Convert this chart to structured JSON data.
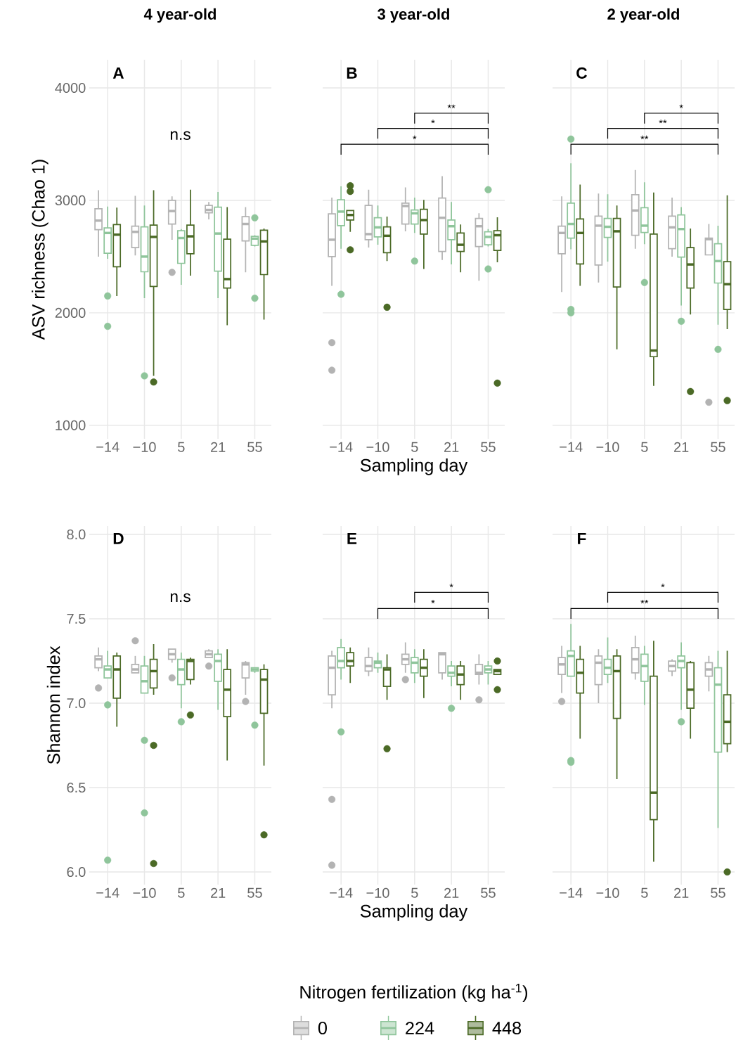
{
  "chart_data": [
    {
      "type": "box",
      "title": "4 year-old",
      "subtitle": "A",
      "ylabel": "ASV richness (Chao 1)",
      "categories": [
        "−14",
        "−10",
        "5",
        "21",
        "55"
      ],
      "ylim": [
        880,
        4250
      ],
      "yticks": [
        1000,
        2000,
        3000,
        4000
      ],
      "grid": true,
      "annotations": [
        "n.s"
      ],
      "series": [
        {
          "color": "#b3b3b3",
          "boxes": [
            {
              "low": 2500,
              "q1": 2740,
              "median": 2820,
              "q3": 2925,
              "high": 3090
            },
            {
              "low": 2510,
              "q1": 2580,
              "median": 2720,
              "q3": 2770,
              "high": 3040
            },
            {
              "low": 2650,
              "q1": 2790,
              "median": 2905,
              "q3": 3000,
              "high": 3035,
              "outliers": [
                2360
              ]
            },
            {
              "low": 2830,
              "q1": 2890,
              "median": 2915,
              "q3": 2955,
              "high": 2985
            },
            {
              "low": 2360,
              "q1": 2640,
              "median": 2790,
              "q3": 2855,
              "high": 2940
            }
          ]
        },
        {
          "color": "#8fc59b",
          "boxes": [
            {
              "low": 2480,
              "q1": 2530,
              "median": 2710,
              "q3": 2755,
              "high": 2945,
              "outliers": [
                2150,
                1880
              ]
            },
            {
              "low": 2130,
              "q1": 2365,
              "median": 2500,
              "q3": 2765,
              "high": 2955,
              "outliers": [
                1440
              ]
            },
            {
              "low": 2250,
              "q1": 2440,
              "median": 2665,
              "q3": 2730,
              "high": 2745
            },
            {
              "low": 2130,
              "q1": 2370,
              "median": 2705,
              "q3": 2940,
              "high": 3075
            },
            {
              "low": 2590,
              "q1": 2600,
              "median": 2660,
              "q3": 2680,
              "high": 2690,
              "outliers": [
                2845,
                2130
              ]
            }
          ]
        },
        {
          "color": "#4b6a26",
          "boxes": [
            {
              "low": 2150,
              "q1": 2410,
              "median": 2695,
              "q3": 2785,
              "high": 2935
            },
            {
              "low": 1440,
              "q1": 2235,
              "median": 2675,
              "q3": 2780,
              "high": 3090,
              "outliers": [
                1385
              ]
            },
            {
              "low": 2330,
              "q1": 2525,
              "median": 2680,
              "q3": 2780,
              "high": 3095
            },
            {
              "low": 1890,
              "q1": 2220,
              "median": 2300,
              "q3": 2655,
              "high": 2940
            },
            {
              "low": 1940,
              "q1": 2340,
              "median": 2635,
              "q3": 2735,
              "high": 2750
            }
          ]
        }
      ]
    },
    {
      "type": "box",
      "title": "3 year-old",
      "subtitle": "B",
      "xlabel": "Sampling day",
      "categories": [
        "−14",
        "−10",
        "5",
        "21",
        "55"
      ],
      "ylim": [
        880,
        4250
      ],
      "yticks": [
        1000,
        2000,
        3000,
        4000
      ],
      "grid": true,
      "tick_labels": "x",
      "annotations": [
        "**",
        "*",
        "*"
      ],
      "series": [
        {
          "color": "#b3b3b3",
          "boxes": [
            {
              "low": 2240,
              "q1": 2500,
              "median": 2650,
              "q3": 2880,
              "high": 3025,
              "outliers": [
                1735,
                1490
              ]
            },
            {
              "low": 2580,
              "q1": 2650,
              "median": 2700,
              "q3": 2955,
              "high": 3095
            },
            {
              "low": 2725,
              "q1": 2790,
              "median": 2950,
              "q3": 2975,
              "high": 3115
            },
            {
              "low": 2470,
              "q1": 2545,
              "median": 2845,
              "q3": 3020,
              "high": 3215
            },
            {
              "low": 2285,
              "q1": 2590,
              "median": 2770,
              "q3": 2840,
              "high": 2885
            }
          ]
        },
        {
          "color": "#8fc59b",
          "boxes": [
            {
              "low": 2570,
              "q1": 2775,
              "median": 2900,
              "q3": 3005,
              "high": 3125,
              "outliers": [
                2165
              ]
            },
            {
              "low": 2605,
              "q1": 2675,
              "median": 2760,
              "q3": 2845,
              "high": 2955
            },
            {
              "low": 2710,
              "q1": 2790,
              "median": 2885,
              "q3": 2915,
              "high": 3025,
              "outliers": [
                2460
              ]
            },
            {
              "low": 2430,
              "q1": 2650,
              "median": 2770,
              "q3": 2825,
              "high": 2985
            },
            {
              "low": 2590,
              "q1": 2605,
              "median": 2675,
              "q3": 2720,
              "high": 2745,
              "outliers": [
                3095,
                2390
              ]
            }
          ]
        },
        {
          "color": "#4b6a26",
          "boxes": [
            {
              "low": 2720,
              "q1": 2825,
              "median": 2870,
              "q3": 2910,
              "high": 2910,
              "outliers": [
                3130,
                3080,
                2560
              ]
            },
            {
              "low": 2460,
              "q1": 2535,
              "median": 2685,
              "q3": 2765,
              "high": 2855,
              "outliers": [
                2050
              ]
            },
            {
              "low": 2390,
              "q1": 2700,
              "median": 2825,
              "q3": 2920,
              "high": 3005
            },
            {
              "low": 2360,
              "q1": 2545,
              "median": 2605,
              "q3": 2710,
              "high": 2785
            },
            {
              "low": 2450,
              "q1": 2555,
              "median": 2690,
              "q3": 2730,
              "high": 2850,
              "outliers": [
                1375
              ]
            }
          ]
        }
      ]
    },
    {
      "type": "box",
      "title": "2 year-old",
      "subtitle": "C",
      "categories": [
        "−14",
        "−10",
        "5",
        "21",
        "55"
      ],
      "ylim": [
        880,
        4250
      ],
      "yticks": [
        1000,
        2000,
        3000,
        4000
      ],
      "grid": true,
      "tick_labels": "x",
      "annotations": [
        "*",
        "**",
        "**"
      ],
      "series": [
        {
          "color": "#b3b3b3",
          "boxes": [
            {
              "low": 2185,
              "q1": 2525,
              "median": 2710,
              "q3": 2770,
              "high": 3035
            },
            {
              "low": 2270,
              "q1": 2425,
              "median": 2775,
              "q3": 2860,
              "high": 3060
            },
            {
              "low": 2570,
              "q1": 2690,
              "median": 2910,
              "q3": 3050,
              "high": 3270
            },
            {
              "low": 2500,
              "q1": 2570,
              "median": 2760,
              "q3": 2860,
              "high": 3025
            },
            {
              "low": 2515,
              "q1": 2515,
              "median": 2655,
              "q3": 2665,
              "high": 2790,
              "outliers": [
                1205
              ]
            }
          ]
        },
        {
          "color": "#8fc59b",
          "boxes": [
            {
              "low": 2565,
              "q1": 2665,
              "median": 2790,
              "q3": 2975,
              "high": 3330,
              "outliers": [
                3545,
                2030,
                2000
              ]
            },
            {
              "low": 2455,
              "q1": 2670,
              "median": 2765,
              "q3": 2840,
              "high": 3055
            },
            {
              "low": 2610,
              "q1": 2715,
              "median": 2775,
              "q3": 2935,
              "high": 3160,
              "outliers": [
                2270
              ]
            },
            {
              "low": 2065,
              "q1": 2495,
              "median": 2745,
              "q3": 2870,
              "high": 2940,
              "outliers": [
                1925
              ]
            },
            {
              "low": 1895,
              "q1": 2265,
              "median": 2460,
              "q3": 2615,
              "high": 2775,
              "outliers": [
                1675
              ]
            }
          ]
        },
        {
          "color": "#4b6a26",
          "boxes": [
            {
              "low": 2240,
              "q1": 2435,
              "median": 2710,
              "q3": 2835,
              "high": 3140
            },
            {
              "low": 1675,
              "q1": 2230,
              "median": 2725,
              "q3": 2840,
              "high": 2955
            },
            {
              "low": 1350,
              "q1": 1610,
              "median": 1665,
              "q3": 2700,
              "high": 3070
            },
            {
              "low": 1985,
              "q1": 2220,
              "median": 2430,
              "q3": 2580,
              "high": 2750,
              "outliers": [
                1300
              ]
            },
            {
              "low": 1855,
              "q1": 2030,
              "median": 2255,
              "q3": 2455,
              "high": 3045,
              "outliers": [
                1220
              ]
            }
          ]
        }
      ]
    },
    {
      "type": "box",
      "subtitle": "D",
      "ylabel": "Shannon index",
      "categories": [
        "−14",
        "−10",
        "5",
        "21",
        "55"
      ],
      "ylim": [
        5.925,
        8.05
      ],
      "yticks": [
        {
          "value": 6,
          "label": "6.0"
        },
        6.5,
        {
          "value": 7,
          "label": "7.0"
        },
        7.5,
        {
          "value": 8,
          "label": "8.0"
        }
      ],
      "grid": true,
      "annotations": [
        "n.s"
      ],
      "series": [
        {
          "color": "#b3b3b3",
          "boxes": [
            {
              "low": 7.19,
              "q1": 7.21,
              "median": 7.26,
              "q3": 7.28,
              "high": 7.33,
              "outliers": [
                7.09
              ]
            },
            {
              "low": 7.18,
              "q1": 7.18,
              "median": 7.2,
              "q3": 7.23,
              "high": 7.28,
              "outliers": [
                7.37
              ]
            },
            {
              "low": 7.24,
              "q1": 7.26,
              "median": 7.29,
              "q3": 7.32,
              "high": 7.32,
              "outliers": [
                7.15
              ]
            },
            {
              "low": 7.27,
              "q1": 7.27,
              "median": 7.29,
              "q3": 7.31,
              "high": 7.32,
              "outliers": [
                7.22
              ]
            },
            {
              "low": 7.05,
              "q1": 7.15,
              "median": 7.23,
              "q3": 7.24,
              "high": 7.25,
              "outliers": [
                7.01
              ]
            }
          ]
        },
        {
          "color": "#8fc59b",
          "boxes": [
            {
              "low": 7.15,
              "q1": 7.15,
              "median": 7.2,
              "q3": 7.22,
              "high": 7.31,
              "outliers": [
                6.99,
                6.07
              ]
            },
            {
              "low": 7.06,
              "q1": 7.06,
              "median": 7.13,
              "q3": 7.22,
              "high": 7.28,
              "outliers": [
                6.78,
                6.35
              ]
            },
            {
              "low": 6.97,
              "q1": 7.11,
              "median": 7.2,
              "q3": 7.26,
              "high": 7.3,
              "outliers": [
                6.89
              ]
            },
            {
              "low": 6.96,
              "q1": 7.13,
              "median": 7.25,
              "q3": 7.29,
              "high": 7.32
            },
            {
              "low": 7.18,
              "q1": 7.19,
              "median": 7.2,
              "q3": 7.21,
              "high": 7.21,
              "outliers": [
                6.87
              ]
            }
          ]
        },
        {
          "color": "#4b6a26",
          "boxes": [
            {
              "low": 6.86,
              "q1": 7.03,
              "median": 7.2,
              "q3": 7.28,
              "high": 7.3
            },
            {
              "low": 7.05,
              "q1": 7.09,
              "median": 7.19,
              "q3": 7.26,
              "high": 7.35,
              "outliers": [
                6.75,
                6.05
              ]
            },
            {
              "low": 7.11,
              "q1": 7.14,
              "median": 7.25,
              "q3": 7.26,
              "high": 7.27,
              "outliers": [
                6.93
              ]
            },
            {
              "low": 6.66,
              "q1": 6.92,
              "median": 7.08,
              "q3": 7.2,
              "high": 7.32
            },
            {
              "low": 6.63,
              "q1": 6.94,
              "median": 7.14,
              "q3": 7.2,
              "high": 7.23,
              "outliers": [
                6.22
              ]
            }
          ]
        }
      ]
    },
    {
      "type": "box",
      "subtitle": "E",
      "xlabel": "Sampling day",
      "legend_title": "Nitrogen fertilization (kg ha$^{-1}$)",
      "legend": "bottom",
      "categories": [
        "−14",
        "−10",
        "5",
        "21",
        "55"
      ],
      "ylim": [
        5.925,
        8.05
      ],
      "yticks": [
        6,
        6.5,
        7,
        7.5,
        8
      ],
      "grid": true,
      "tick_labels": "x",
      "annotations": [
        "*",
        "*"
      ],
      "series": [
        {
          "name": "0",
          "color": "#b3b3b3",
          "boxes": [
            {
              "low": 6.97,
              "q1": 7.05,
              "median": 7.21,
              "q3": 7.28,
              "high": 7.31,
              "outliers": [
                6.43,
                6.04
              ]
            },
            {
              "low": 7.16,
              "q1": 7.19,
              "median": 7.22,
              "q3": 7.27,
              "high": 7.33
            },
            {
              "low": 7.18,
              "q1": 7.23,
              "median": 7.26,
              "q3": 7.29,
              "high": 7.36,
              "outliers": [
                7.14
              ]
            },
            {
              "low": 7.14,
              "q1": 7.18,
              "median": 7.29,
              "q3": 7.3,
              "high": 7.3
            },
            {
              "low": 7.11,
              "q1": 7.17,
              "median": 7.18,
              "q3": 7.23,
              "high": 7.29,
              "outliers": [
                7.02
              ]
            }
          ]
        },
        {
          "name": "224",
          "color": "#8fc59b",
          "boxes": [
            {
              "low": 7.14,
              "q1": 7.21,
              "median": 7.25,
              "q3": 7.33,
              "high": 7.38,
              "outliers": [
                6.83
              ]
            },
            {
              "low": 7.18,
              "q1": 7.21,
              "median": 7.24,
              "q3": 7.25,
              "high": 7.3
            },
            {
              "low": 7.12,
              "q1": 7.18,
              "median": 7.24,
              "q3": 7.27,
              "high": 7.32
            },
            {
              "low": 7.1,
              "q1": 7.16,
              "median": 7.18,
              "q3": 7.22,
              "high": 7.25,
              "outliers": [
                6.97
              ]
            },
            {
              "low": 7.11,
              "q1": 7.18,
              "median": 7.2,
              "q3": 7.22,
              "high": 7.25
            }
          ]
        },
        {
          "name": "448",
          "color": "#4b6a26",
          "boxes": [
            {
              "low": 7.12,
              "q1": 7.22,
              "median": 7.25,
              "q3": 7.3,
              "high": 7.33
            },
            {
              "low": 7.02,
              "q1": 7.1,
              "median": 7.2,
              "q3": 7.21,
              "high": 7.29,
              "outliers": [
                6.73
              ]
            },
            {
              "low": 7.03,
              "q1": 7.16,
              "median": 7.21,
              "q3": 7.26,
              "high": 7.32
            },
            {
              "low": 7.02,
              "q1": 7.11,
              "median": 7.17,
              "q3": 7.22,
              "high": 7.25
            },
            {
              "low": 7.17,
              "q1": 7.17,
              "median": 7.19,
              "q3": 7.2,
              "high": 7.2,
              "outliers": [
                7.25,
                7.08
              ]
            }
          ]
        }
      ]
    },
    {
      "type": "box",
      "subtitle": "F",
      "categories": [
        "−14",
        "−10",
        "5",
        "21",
        "55"
      ],
      "ylim": [
        5.925,
        8.05
      ],
      "yticks": [
        6,
        6.5,
        7,
        7.5,
        8
      ],
      "grid": true,
      "tick_labels": "x",
      "annotations": [
        "*",
        "**"
      ],
      "series": [
        {
          "color": "#b3b3b3",
          "boxes": [
            {
              "low": 7.06,
              "q1": 7.17,
              "median": 7.23,
              "q3": 7.27,
              "high": 7.34,
              "outliers": [
                7.01
              ]
            },
            {
              "low": 7.0,
              "q1": 7.11,
              "median": 7.24,
              "q3": 7.28,
              "high": 7.32
            },
            {
              "low": 7.14,
              "q1": 7.18,
              "median": 7.26,
              "q3": 7.33,
              "high": 7.4
            },
            {
              "low": 7.16,
              "q1": 7.19,
              "median": 7.22,
              "q3": 7.25,
              "high": 7.26
            },
            {
              "low": 7.07,
              "q1": 7.16,
              "median": 7.2,
              "q3": 7.24,
              "high": 7.28
            }
          ]
        },
        {
          "color": "#8fc59b",
          "boxes": [
            {
              "low": 7.16,
              "q1": 7.16,
              "median": 7.28,
              "q3": 7.31,
              "high": 7.47,
              "outliers": [
                6.66,
                6.65
              ]
            },
            {
              "low": 7.12,
              "q1": 7.17,
              "median": 7.21,
              "q3": 7.26,
              "high": 7.39
            },
            {
              "low": 6.99,
              "q1": 7.13,
              "median": 7.22,
              "q3": 7.29,
              "high": 7.34
            },
            {
              "low": 6.96,
              "q1": 7.21,
              "median": 7.25,
              "q3": 7.28,
              "high": 7.36,
              "outliers": [
                6.89
              ]
            },
            {
              "low": 6.26,
              "q1": 6.71,
              "median": 7.11,
              "q3": 7.21,
              "high": 7.31
            }
          ]
        },
        {
          "color": "#4b6a26",
          "boxes": [
            {
              "low": 6.79,
              "q1": 7.06,
              "median": 7.18,
              "q3": 7.26,
              "high": 7.34
            },
            {
              "low": 6.55,
              "q1": 6.91,
              "median": 7.19,
              "q3": 7.28,
              "high": 7.32
            },
            {
              "low": 6.06,
              "q1": 6.31,
              "median": 6.47,
              "q3": 7.16,
              "high": 7.37
            },
            {
              "low": 6.79,
              "q1": 6.97,
              "median": 7.08,
              "q3": 7.24,
              "high": 7.25
            },
            {
              "low": 6.71,
              "q1": 6.76,
              "median": 6.89,
              "q3": 7.05,
              "high": 7.31,
              "outliers": [
                6.0
              ]
            }
          ]
        }
      ]
    }
  ]
}
